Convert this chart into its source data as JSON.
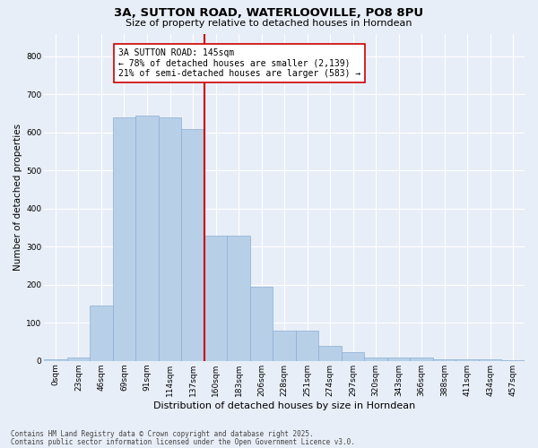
{
  "title_line1": "3A, SUTTON ROAD, WATERLOOVILLE, PO8 8PU",
  "title_line2": "Size of property relative to detached houses in Horndean",
  "xlabel": "Distribution of detached houses by size in Horndean",
  "ylabel": "Number of detached properties",
  "categories": [
    "0sqm",
    "23sqm",
    "46sqm",
    "69sqm",
    "91sqm",
    "114sqm",
    "137sqm",
    "160sqm",
    "183sqm",
    "206sqm",
    "228sqm",
    "251sqm",
    "274sqm",
    "297sqm",
    "320sqm",
    "343sqm",
    "366sqm",
    "388sqm",
    "411sqm",
    "434sqm",
    "457sqm"
  ],
  "values": [
    5,
    10,
    145,
    640,
    645,
    640,
    610,
    330,
    330,
    195,
    80,
    80,
    40,
    22,
    10,
    10,
    10,
    5,
    5,
    5,
    3
  ],
  "bar_color": "#b8cfe8",
  "bar_edge_color": "#8aafd4",
  "vline_color": "#cc0000",
  "annotation_text": "3A SUTTON ROAD: 145sqm\n← 78% of detached houses are smaller (2,139)\n21% of semi-detached houses are larger (583) →",
  "annotation_box_color": "#ffffff",
  "annotation_box_edge": "#cc0000",
  "ylim": [
    0,
    860
  ],
  "yticks": [
    0,
    100,
    200,
    300,
    400,
    500,
    600,
    700,
    800
  ],
  "bg_color": "#e8eef7",
  "plot_bg_color": "#e8eef7",
  "footer_line1": "Contains HM Land Registry data © Crown copyright and database right 2025.",
  "footer_line2": "Contains public sector information licensed under the Open Government Licence v3.0.",
  "title_fontsize": 9.5,
  "subtitle_fontsize": 8,
  "axis_label_fontsize": 7.5,
  "tick_fontsize": 6.5,
  "annotation_fontsize": 7,
  "footer_fontsize": 5.5
}
